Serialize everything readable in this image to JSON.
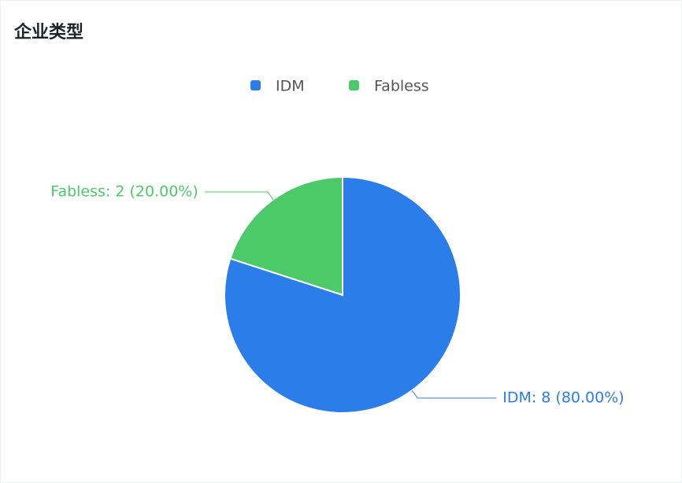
{
  "chart_data": {
    "type": "pie",
    "title": "企业类型",
    "categories": [
      "IDM",
      "Fabless"
    ],
    "values": [
      8,
      2
    ],
    "value_labels": [
      "IDM: 8 (80.00%)",
      "Fabless: 2 (20.00%)"
    ],
    "colors": [
      "#2b7ee9",
      "#4cc968"
    ],
    "legend": "top"
  }
}
